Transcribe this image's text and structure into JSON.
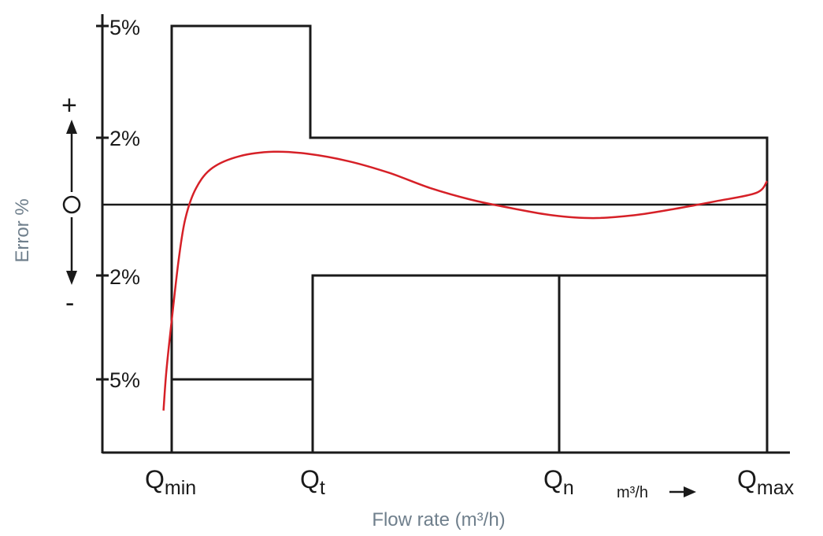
{
  "chart_data": {
    "type": "line",
    "xlabel": "Flow rate (m³/h)",
    "ylabel": "Error %",
    "x_unit": "m³/h",
    "y_tick_labels": [
      "5%",
      "2%",
      "2%",
      "5%"
    ],
    "y_ticks": [
      5,
      2,
      -2,
      -5
    ],
    "ylim": [
      -7.2,
      5
    ],
    "x_markers": [
      {
        "main": "Q",
        "sub": "min"
      },
      {
        "main": "Q",
        "sub": "t"
      },
      {
        "main": "Q",
        "sub": "n"
      },
      {
        "main": "Q",
        "sub": "max"
      }
    ],
    "sign_plus": "+",
    "sign_zero": "O",
    "sign_minus": "-",
    "upper_limits": [
      {
        "from": "Qmin",
        "to": "Qt",
        "value": 5
      },
      {
        "from": "Qt",
        "to": "Qmax",
        "value": 2
      }
    ],
    "lower_limits": [
      {
        "from": "Qmin",
        "to": "Qt",
        "value": -5
      },
      {
        "from": "Qt",
        "to": "Qmax",
        "value": -2
      }
    ],
    "series": [
      {
        "color": "#d62027",
        "points": [
          [
            -0.06,
            -5.9
          ],
          [
            -0.04,
            -4.8
          ],
          [
            0.0,
            -3.3
          ],
          [
            0.05,
            -1.6
          ],
          [
            0.1,
            -0.4
          ],
          [
            0.18,
            0.5
          ],
          [
            0.3,
            1.1
          ],
          [
            0.5,
            1.45
          ],
          [
            0.75,
            1.58
          ],
          [
            1.0,
            1.52
          ],
          [
            1.3,
            1.3
          ],
          [
            1.6,
            0.95
          ],
          [
            1.9,
            0.5
          ],
          [
            2.2,
            0.15
          ],
          [
            2.5,
            -0.1
          ],
          [
            2.8,
            -0.3
          ],
          [
            3.1,
            -0.38
          ],
          [
            3.4,
            -0.3
          ],
          [
            3.7,
            -0.12
          ],
          [
            4.0,
            0.1
          ],
          [
            4.3,
            0.35
          ],
          [
            4.38,
            0.7
          ]
        ]
      }
    ],
    "colors": {
      "axis": "#1a1a1a",
      "curve": "#d62027",
      "axis_title": "#6f7f8c"
    }
  }
}
